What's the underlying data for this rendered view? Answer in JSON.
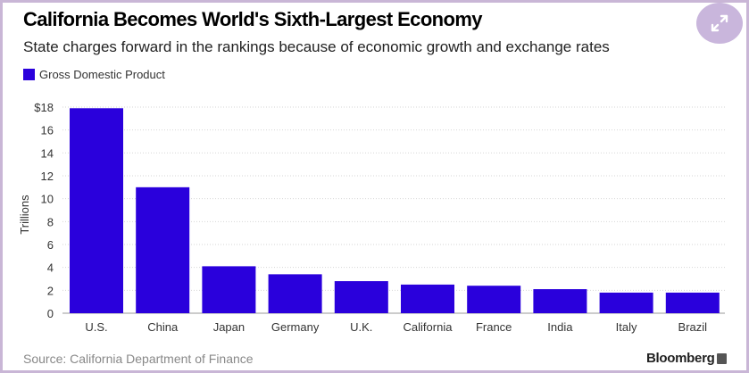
{
  "header": {
    "title": "California Becomes World's Sixth-Largest Economy",
    "subtitle": "State charges forward in the rankings because of economic growth and exchange rates"
  },
  "expand_icon": "expand-arrows-icon",
  "footer": {
    "source": "Source: California Department of Finance",
    "brand": "Bloomberg"
  },
  "colors": {
    "bar": "#2a00dc",
    "grid": "#d6d6d6",
    "expand_bg": "#c9b6dc"
  },
  "chart_data": {
    "type": "bar",
    "title": "California Becomes World's Sixth-Largest Economy",
    "subtitle": "State charges forward in the rankings because of economic growth and exchange rates",
    "xlabel": "",
    "ylabel": "Trillions",
    "legend": [
      "Gross Domestic Product"
    ],
    "legend_position": "top-left",
    "categories": [
      "U.S.",
      "China",
      "Japan",
      "Germany",
      "U.K.",
      "California",
      "France",
      "India",
      "Italy",
      "Brazil"
    ],
    "series": [
      {
        "name": "Gross Domestic Product",
        "values": [
          17.9,
          11.0,
          4.1,
          3.4,
          2.8,
          2.5,
          2.4,
          2.1,
          1.8,
          1.8
        ]
      }
    ],
    "ylim": [
      0,
      18
    ],
    "yticks": [
      0,
      2,
      4,
      6,
      8,
      10,
      12,
      14,
      16,
      18
    ],
    "ytick_labels": [
      "0",
      "2",
      "4",
      "6",
      "8",
      "10",
      "12",
      "14",
      "16",
      "$18"
    ],
    "grid": true
  }
}
